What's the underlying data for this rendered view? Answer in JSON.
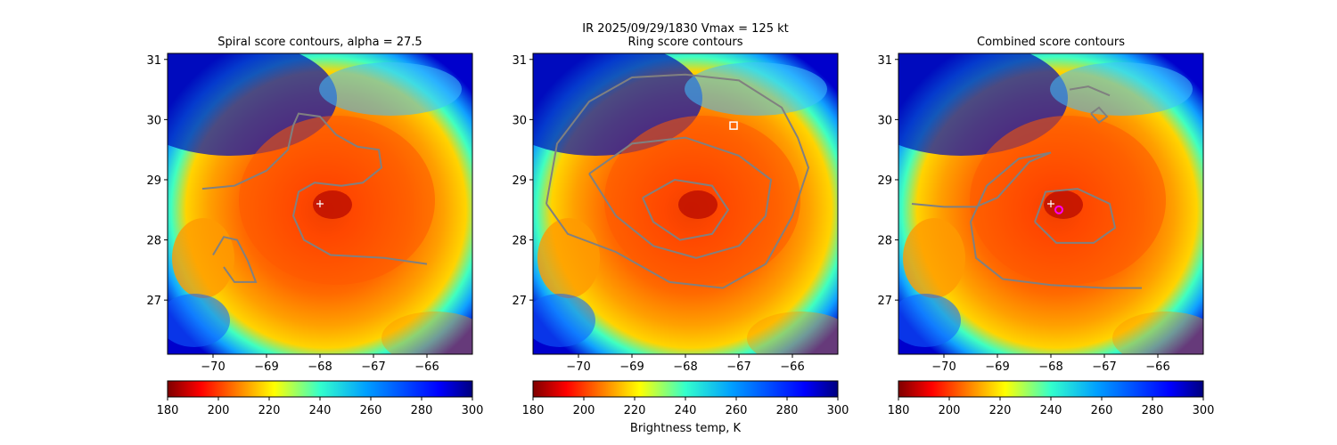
{
  "figure": {
    "suptitle_line1": "IR  2025/09/29/1830    Vmax = 125 kt",
    "colorbar_label": "Brightness temp, K"
  },
  "chart_data": [
    {
      "type": "heatmap",
      "title": "Spiral score contours, alpha = 27.5",
      "xlim": [
        -70.85,
        -65.15
      ],
      "ylim": [
        26.1,
        31.1
      ],
      "x_ticks": [
        -70,
        -69,
        -68,
        -67,
        -66
      ],
      "y_ticks": [
        27,
        28,
        29,
        30,
        31
      ],
      "colorbar": {
        "cmap": "jet_r",
        "range": [
          180,
          300
        ],
        "ticks": [
          180,
          200,
          220,
          240,
          260,
          280,
          300
        ]
      },
      "markers": [
        {
          "label": "+",
          "lon": -68.0,
          "lat": 28.6,
          "color": "#ffffff"
        }
      ],
      "contours": [
        {
          "color": "#808080",
          "points": [
            [
              -70.2,
              28.85
            ],
            [
              -69.6,
              28.9
            ],
            [
              -69.0,
              29.15
            ],
            [
              -68.6,
              29.5
            ],
            [
              -68.5,
              29.9
            ],
            [
              -68.4,
              30.1
            ],
            [
              -68.0,
              30.05
            ],
            [
              -67.7,
              29.75
            ],
            [
              -67.3,
              29.55
            ],
            [
              -66.9,
              29.5
            ],
            [
              -66.85,
              29.2
            ],
            [
              -67.2,
              28.95
            ],
            [
              -67.6,
              28.9
            ],
            [
              -68.1,
              28.95
            ],
            [
              -68.4,
              28.8
            ],
            [
              -68.5,
              28.4
            ],
            [
              -68.3,
              28.0
            ],
            [
              -67.8,
              27.75
            ],
            [
              -66.8,
              27.7
            ],
            [
              -66.0,
              27.6
            ]
          ]
        },
        {
          "color": "#808080",
          "points": [
            [
              -70.0,
              27.75
            ],
            [
              -69.8,
              28.05
            ],
            [
              -69.55,
              28.0
            ],
            [
              -69.35,
              27.65
            ],
            [
              -69.2,
              27.3
            ],
            [
              -69.6,
              27.3
            ],
            [
              -69.8,
              27.55
            ]
          ]
        }
      ]
    },
    {
      "type": "heatmap",
      "title": "Ring score contours",
      "xlim": [
        -70.85,
        -65.15
      ],
      "ylim": [
        26.1,
        31.1
      ],
      "x_ticks": [
        -70,
        -69,
        -68,
        -67,
        -66
      ],
      "y_ticks": [
        27,
        28,
        29,
        30,
        31
      ],
      "colorbar": {
        "cmap": "jet_r",
        "range": [
          180,
          300
        ],
        "ticks": [
          180,
          200,
          220,
          240,
          260,
          280,
          300
        ]
      },
      "markers": [
        {
          "label": "□",
          "lon": -67.1,
          "lat": 29.9,
          "color": "#ffffff"
        }
      ],
      "contours": [
        {
          "color": "#808080",
          "points": [
            [
              -70.6,
              28.6
            ],
            [
              -70.4,
              29.6
            ],
            [
              -69.8,
              30.3
            ],
            [
              -69.0,
              30.7
            ],
            [
              -68.0,
              30.75
            ],
            [
              -67.0,
              30.65
            ],
            [
              -66.2,
              30.2
            ],
            [
              -65.9,
              29.7
            ],
            [
              -65.7,
              29.2
            ],
            [
              -66.0,
              28.4
            ],
            [
              -66.5,
              27.6
            ],
            [
              -67.3,
              27.2
            ],
            [
              -68.3,
              27.3
            ],
            [
              -69.3,
              27.8
            ],
            [
              -70.2,
              28.1
            ],
            [
              -70.6,
              28.6
            ]
          ]
        },
        {
          "color": "#808080",
          "points": [
            [
              -69.8,
              29.1
            ],
            [
              -69.0,
              29.6
            ],
            [
              -68.0,
              29.7
            ],
            [
              -67.0,
              29.4
            ],
            [
              -66.4,
              29.0
            ],
            [
              -66.5,
              28.4
            ],
            [
              -67.0,
              27.9
            ],
            [
              -67.8,
              27.7
            ],
            [
              -68.6,
              27.9
            ],
            [
              -69.3,
              28.4
            ],
            [
              -69.8,
              29.1
            ]
          ]
        },
        {
          "color": "#808080",
          "points": [
            [
              -68.8,
              28.7
            ],
            [
              -68.2,
              29.0
            ],
            [
              -67.5,
              28.9
            ],
            [
              -67.2,
              28.5
            ],
            [
              -67.5,
              28.1
            ],
            [
              -68.1,
              28.0
            ],
            [
              -68.6,
              28.3
            ],
            [
              -68.8,
              28.7
            ]
          ]
        }
      ]
    },
    {
      "type": "heatmap",
      "title": "Combined score contours",
      "xlim": [
        -70.85,
        -65.15
      ],
      "ylim": [
        26.1,
        31.1
      ],
      "x_ticks": [
        -70,
        -69,
        -68,
        -67,
        -66
      ],
      "y_ticks": [
        27,
        28,
        29,
        30,
        31
      ],
      "colorbar": {
        "cmap": "jet_r",
        "range": [
          180,
          300
        ],
        "ticks": [
          180,
          200,
          220,
          240,
          260,
          280,
          300
        ]
      },
      "markers": [
        {
          "label": "+",
          "lon": -68.0,
          "lat": 28.6,
          "color": "#ffffff"
        },
        {
          "label": "o",
          "lon": -67.85,
          "lat": 28.5,
          "color": "#ff00ff"
        }
      ],
      "contours": [
        {
          "color": "#808080",
          "points": [
            [
              -70.6,
              28.6
            ],
            [
              -70.0,
              28.55
            ],
            [
              -69.4,
              28.55
            ],
            [
              -69.0,
              28.7
            ],
            [
              -68.7,
              29.0
            ],
            [
              -68.4,
              29.3
            ],
            [
              -68.0,
              29.45
            ],
            [
              -68.6,
              29.35
            ],
            [
              -69.2,
              28.9
            ],
            [
              -69.5,
              28.3
            ],
            [
              -69.4,
              27.7
            ],
            [
              -68.9,
              27.35
            ],
            [
              -68.0,
              27.25
            ],
            [
              -67.0,
              27.2
            ],
            [
              -66.3,
              27.2
            ]
          ]
        },
        {
          "color": "#808080",
          "points": [
            [
              -68.3,
              28.3
            ],
            [
              -68.1,
              28.8
            ],
            [
              -67.5,
              28.85
            ],
            [
              -66.9,
              28.6
            ],
            [
              -66.8,
              28.2
            ],
            [
              -67.2,
              27.95
            ],
            [
              -67.9,
              27.95
            ],
            [
              -68.3,
              28.3
            ]
          ]
        },
        {
          "color": "#808080",
          "points": [
            [
              -67.65,
              30.5
            ],
            [
              -67.3,
              30.55
            ],
            [
              -66.9,
              30.4
            ]
          ]
        },
        {
          "color": "#808080",
          "points": [
            [
              -67.25,
              30.1
            ],
            [
              -67.1,
              30.2
            ],
            [
              -66.95,
              30.05
            ],
            [
              -67.1,
              29.95
            ],
            [
              -67.25,
              30.1
            ]
          ]
        }
      ]
    }
  ]
}
